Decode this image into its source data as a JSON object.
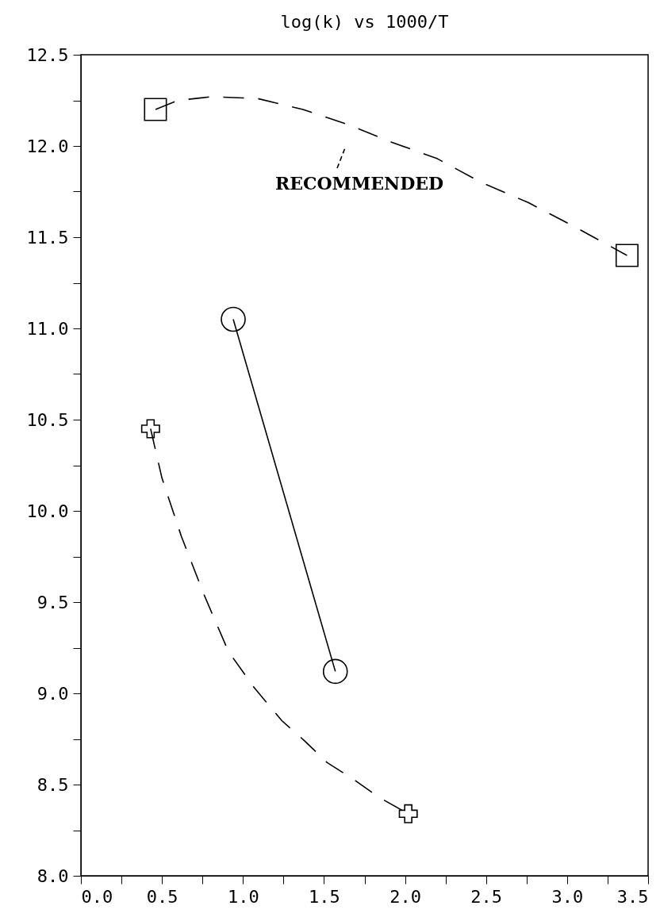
{
  "chart_data": {
    "type": "line",
    "title": "log(k) vs 1000/T",
    "xlim": [
      0,
      3.5
    ],
    "ylim": [
      8,
      12.5
    ],
    "xticks": [
      {
        "value": 0,
        "label": "0.0"
      },
      {
        "value": 0.25,
        "label": null
      },
      {
        "value": 0.5,
        "label": "0.5"
      },
      {
        "value": 0.75,
        "label": null
      },
      {
        "value": 1,
        "label": "1.0"
      },
      {
        "value": 1.25,
        "label": null
      },
      {
        "value": 1.5,
        "label": "1.5"
      },
      {
        "value": 1.75,
        "label": null
      },
      {
        "value": 2,
        "label": "2.0"
      },
      {
        "value": 2.25,
        "label": null
      },
      {
        "value": 2.5,
        "label": "2.5"
      },
      {
        "value": 2.75,
        "label": null
      },
      {
        "value": 3,
        "label": "3.0"
      },
      {
        "value": 3.25,
        "label": null
      },
      {
        "value": 3.5,
        "label": "3.5"
      }
    ],
    "yticks": [
      {
        "value": 8,
        "label": "8.0"
      },
      {
        "value": 8.25,
        "label": null
      },
      {
        "value": 8.5,
        "label": "8.5"
      },
      {
        "value": 8.75,
        "label": null
      },
      {
        "value": 9,
        "label": "9.0"
      },
      {
        "value": 9.25,
        "label": null
      },
      {
        "value": 9.5,
        "label": "9.5"
      },
      {
        "value": 9.75,
        "label": null
      },
      {
        "value": 10,
        "label": "10.0"
      },
      {
        "value": 10.25,
        "label": null
      },
      {
        "value": 10.5,
        "label": "10.5"
      },
      {
        "value": 10.75,
        "label": null
      },
      {
        "value": 11,
        "label": "11.0"
      },
      {
        "value": 11.25,
        "label": null
      },
      {
        "value": 11.5,
        "label": "11.5"
      },
      {
        "value": 11.75,
        "label": null
      },
      {
        "value": 12,
        "label": "12.0"
      },
      {
        "value": 12.25,
        "label": null
      },
      {
        "value": 12.5,
        "label": "12.5"
      }
    ],
    "grid": false,
    "series": [
      {
        "line_style": "dashed",
        "marker": "none",
        "color": "#000000",
        "x": [
          0.46,
          0.6,
          0.81,
          1.09,
          1.37,
          1.64,
          1.92,
          2.2,
          2.47,
          2.76,
          3.04,
          3.37
        ],
        "values": [
          12.2,
          12.25,
          12.27,
          12.26,
          12.2,
          12.12,
          12.02,
          11.93,
          11.8,
          11.69,
          11.56,
          11.4
        ]
      },
      {
        "type": "scatter",
        "marker": "square",
        "color": "#000000",
        "x": [
          0.46,
          3.37
        ],
        "values": [
          12.2,
          11.4
        ]
      },
      {
        "line_style": "solid",
        "marker": "circle",
        "color": "#000000",
        "x": [
          0.94,
          1.57
        ],
        "values": [
          11.05,
          9.12
        ]
      },
      {
        "line_style": "dashed",
        "marker": "none",
        "color": "#000000",
        "x": [
          0.43,
          0.5,
          0.62,
          0.76,
          0.91,
          1.07,
          1.24,
          1.38,
          1.52,
          1.68,
          1.84,
          2.02
        ],
        "values": [
          10.45,
          10.18,
          9.86,
          9.54,
          9.23,
          9.03,
          8.85,
          8.74,
          8.62,
          8.53,
          8.43,
          8.34
        ]
      },
      {
        "type": "scatter",
        "marker": "cross",
        "color": "#000000",
        "x": [
          0.43,
          2.02
        ],
        "values": [
          10.45,
          8.34
        ]
      }
    ],
    "annotations": [
      "RECOMMENDED"
    ]
  }
}
